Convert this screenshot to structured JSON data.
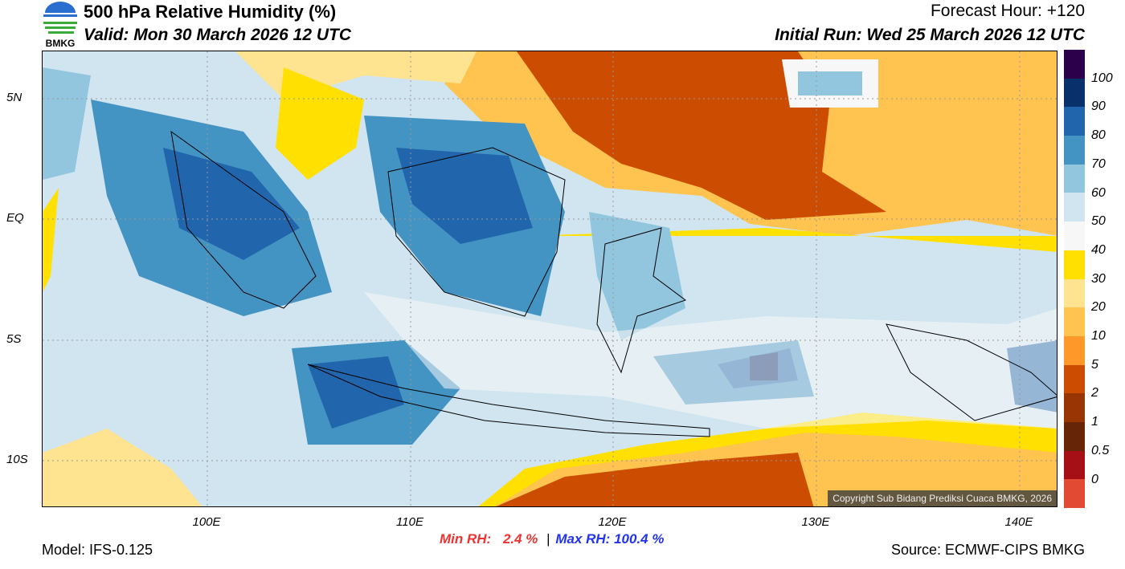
{
  "header": {
    "title": "500 hPa Relative Humidity (%)",
    "valid": "Valid: Mon 30 March 2026 12 UTC",
    "forecast_hour": "Forecast Hour: +120",
    "initial_run": "Initial Run: Wed 25 March 2026 12 UTC",
    "logo_text": "BMKG"
  },
  "map": {
    "lat_labels": [
      "5N",
      "EQ",
      "5S",
      "10S"
    ],
    "lon_labels": [
      "100E",
      "110E",
      "120E",
      "130E",
      "140E"
    ],
    "copyright": "Copyright Sub Bidang Prediksi Cuaca BMKG, 2026"
  },
  "colorbar": {
    "labels": [
      "100",
      "90",
      "80",
      "70",
      "60",
      "50",
      "40",
      "30",
      "20",
      "10",
      "5",
      "2",
      "1",
      "0.5",
      "0"
    ],
    "colors": [
      "#2d004b",
      "#08306b",
      "#2166ac",
      "#4393c3",
      "#92c5de",
      "#d1e5f0",
      "#f7f7f7",
      "#ffe000",
      "#fee391",
      "#fec44f",
      "#fe9929",
      "#cc4c02",
      "#993404",
      "#662506",
      "#a50f15",
      "#e34a33"
    ]
  },
  "footer": {
    "min_label": "Min RH:",
    "min_value": "2.4 %",
    "separator": "|",
    "max_label": "Max RH:",
    "max_value": "100.4 %",
    "model": "Model: IFS-0.125",
    "source": "Source: ECMWF-CIPS BMKG",
    "min_color": "#ee3333",
    "max_color": "#2233ee"
  }
}
